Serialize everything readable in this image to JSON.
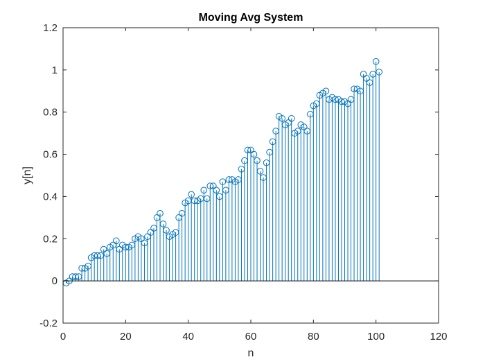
{
  "chart_data": {
    "type": "stem",
    "title": "Moving Avg System",
    "xlabel": "n",
    "ylabel": "y[n]",
    "xlim": [
      0,
      120
    ],
    "ylim": [
      -0.2,
      1.2
    ],
    "xticks": [
      "0",
      "20",
      "40",
      "60",
      "80",
      "100",
      "120"
    ],
    "yticks": [
      "-0.2",
      "0",
      "0.2",
      "0.4",
      "0.6",
      "0.8",
      "1",
      "1.2"
    ],
    "grid": false,
    "color": "#0072BD",
    "series": [
      {
        "x": [
          1,
          2,
          3,
          4,
          5,
          6,
          7,
          8,
          9,
          10,
          11,
          12,
          13,
          14,
          15,
          16,
          17,
          18,
          19,
          20,
          21,
          22,
          23,
          24,
          25,
          26,
          27,
          28,
          29,
          30,
          31,
          32,
          33,
          34,
          35,
          36,
          37,
          38,
          39,
          40,
          41,
          42,
          43,
          44,
          45,
          46,
          47,
          48,
          49,
          50,
          51,
          52,
          53,
          54,
          55,
          56,
          57,
          58,
          59,
          60,
          61,
          62,
          63,
          64,
          65,
          66,
          67,
          68,
          69,
          70,
          71,
          72,
          73,
          74,
          75,
          76,
          77,
          78,
          79,
          80,
          81,
          82,
          83,
          84,
          85,
          86,
          87,
          88,
          89,
          90,
          91,
          92,
          93,
          94,
          95,
          96,
          97,
          98,
          99,
          100,
          101
        ],
        "y": [
          -0.01,
          0.0,
          0.02,
          0.02,
          0.02,
          0.06,
          0.06,
          0.07,
          0.11,
          0.12,
          0.12,
          0.12,
          0.15,
          0.13,
          0.16,
          0.17,
          0.19,
          0.15,
          0.17,
          0.16,
          0.16,
          0.17,
          0.2,
          0.21,
          0.2,
          0.18,
          0.21,
          0.23,
          0.25,
          0.3,
          0.32,
          0.27,
          0.24,
          0.21,
          0.22,
          0.23,
          0.3,
          0.32,
          0.37,
          0.38,
          0.41,
          0.38,
          0.38,
          0.39,
          0.43,
          0.39,
          0.45,
          0.45,
          0.43,
          0.4,
          0.47,
          0.43,
          0.48,
          0.48,
          0.47,
          0.48,
          0.53,
          0.57,
          0.62,
          0.62,
          0.6,
          0.57,
          0.52,
          0.49,
          0.56,
          0.61,
          0.66,
          0.71,
          0.78,
          0.77,
          0.74,
          0.75,
          0.77,
          0.7,
          0.71,
          0.74,
          0.73,
          0.71,
          0.79,
          0.83,
          0.84,
          0.88,
          0.89,
          0.9,
          0.86,
          0.87,
          0.86,
          0.86,
          0.85,
          0.85,
          0.84,
          0.86,
          0.91,
          0.91,
          0.9,
          0.98,
          0.96,
          0.94,
          0.98,
          1.04,
          0.99
        ]
      }
    ]
  }
}
